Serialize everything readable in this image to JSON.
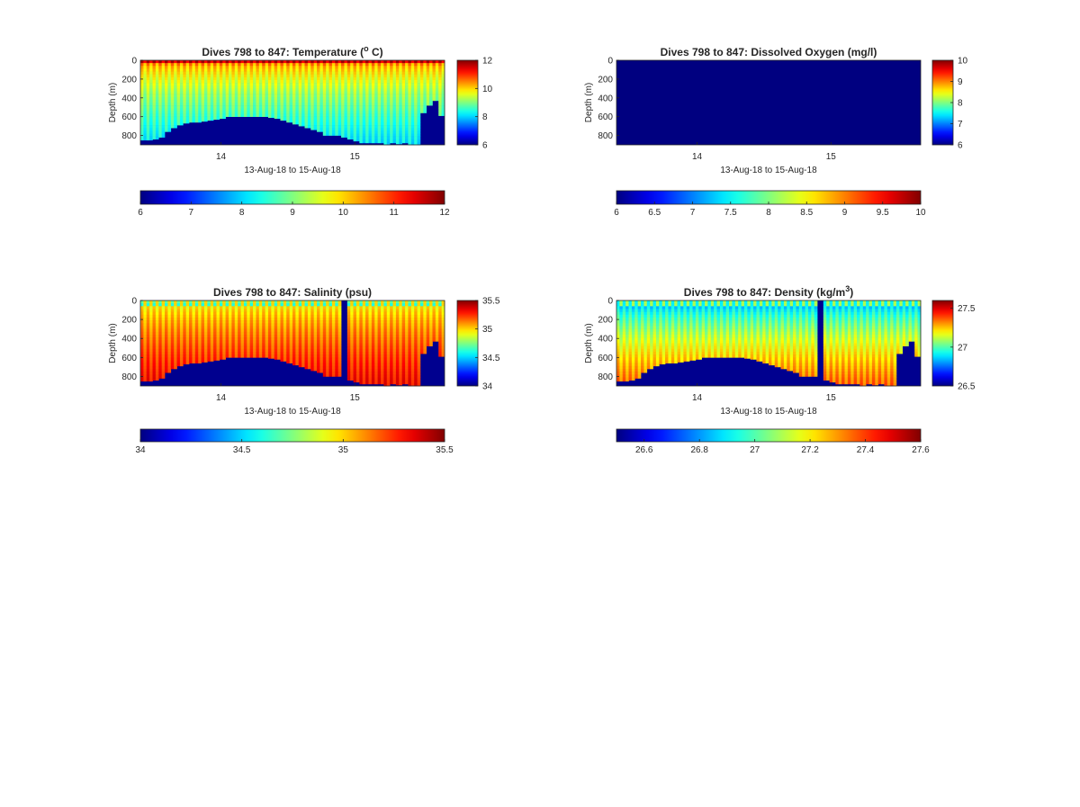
{
  "colors": {
    "background": "#ffffff",
    "seafloor": "#00008f",
    "frame": "#262626",
    "colormap": "jet"
  },
  "chart_data": [
    {
      "type": "heatmap",
      "title": "Dives 798 to 847: Temperature (",
      "title_sup": "o",
      "title_suffix": " C)",
      "variable": "temperature",
      "xlabel": "13-Aug-18 to 15-Aug-18",
      "ylabel": "Depth (m)",
      "x_ticks": [
        "14",
        "15"
      ],
      "y_ticks": [
        "0",
        "200",
        "400",
        "600",
        "800"
      ],
      "ylim": [
        900,
        0
      ],
      "color_range": [
        6,
        12
      ],
      "side_colorbar_ticks": [
        "12",
        "10",
        "8",
        "6"
      ],
      "bottom_colorbar_ticks": [
        "6",
        "7",
        "8",
        "9",
        "10",
        "11",
        "12"
      ],
      "grid": false,
      "dives": 50,
      "surface_value": 10.5,
      "deep_value": 8.0,
      "column_sawtooth": true,
      "dive_gap_near_15": false
    },
    {
      "type": "heatmap",
      "title": "Dives 798 to 847: Dissolved Oxygen (mg/l)",
      "variable": "dissolved_oxygen",
      "xlabel": "13-Aug-18 to 15-Aug-18",
      "ylabel": "Depth (m)",
      "x_ticks": [
        "14",
        "15"
      ],
      "y_ticks": [
        "0",
        "200",
        "400",
        "600",
        "800"
      ],
      "ylim": [
        900,
        0
      ],
      "color_range": [
        6,
        10
      ],
      "side_colorbar_ticks": [
        "10",
        "9",
        "8",
        "7",
        "6"
      ],
      "bottom_colorbar_ticks": [
        "6",
        "6.5",
        "7",
        "7.5",
        "8",
        "8.5",
        "9",
        "9.5",
        "10"
      ],
      "grid": false,
      "uniform_value": 6,
      "note_value": "field filled uniformly at minimum of color range"
    },
    {
      "type": "heatmap",
      "title": "Dives 798 to 847: Salinity (psu)",
      "variable": "salinity",
      "xlabel": "13-Aug-18 to 15-Aug-18",
      "ylabel": "Depth (m)",
      "x_ticks": [
        "14",
        "15"
      ],
      "y_ticks": [
        "0",
        "200",
        "400",
        "600",
        "800"
      ],
      "ylim": [
        900,
        0
      ],
      "color_range": [
        34,
        35.5
      ],
      "side_colorbar_ticks": [
        "35.5",
        "35",
        "34.5",
        "34"
      ],
      "bottom_colorbar_ticks": [
        "34",
        "34.5",
        "35",
        "35.5"
      ],
      "grid": false,
      "dives": 50,
      "surface_value": 34.85,
      "deep_value": 35.3,
      "column_sawtooth": true,
      "dive_gap_near_15": true
    },
    {
      "type": "heatmap",
      "title": "Dives 798 to 847: Density (kg/m",
      "title_sup": "3",
      "title_suffix": ")",
      "variable": "density",
      "xlabel": "13-Aug-18 to 15-Aug-18",
      "ylabel": "Depth (m)",
      "x_ticks": [
        "14",
        "15"
      ],
      "y_ticks": [
        "0",
        "200",
        "400",
        "600",
        "800"
      ],
      "ylim": [
        900,
        0
      ],
      "color_range": [
        26.5,
        27.6
      ],
      "side_colorbar_ticks": [
        "27.5",
        "27",
        "26.5"
      ],
      "bottom_colorbar_ticks": [
        "26.6",
        "26.8",
        "27",
        "27.2",
        "27.4",
        "27.6"
      ],
      "grid": false,
      "dives": 50,
      "surface_value": 26.75,
      "deep_value": 27.35,
      "column_sawtooth": true,
      "dive_gap_near_15": true
    }
  ],
  "seafloor_depth_profile_m": [
    850,
    850,
    840,
    820,
    760,
    720,
    690,
    670,
    660,
    660,
    650,
    640,
    630,
    620,
    600,
    600,
    600,
    600,
    600,
    600,
    600,
    610,
    620,
    640,
    660,
    680,
    700,
    720,
    740,
    760,
    800,
    800,
    800,
    820,
    840,
    860,
    880,
    880,
    880,
    880,
    900,
    880,
    890,
    880,
    900,
    900,
    560,
    480,
    430,
    590
  ]
}
